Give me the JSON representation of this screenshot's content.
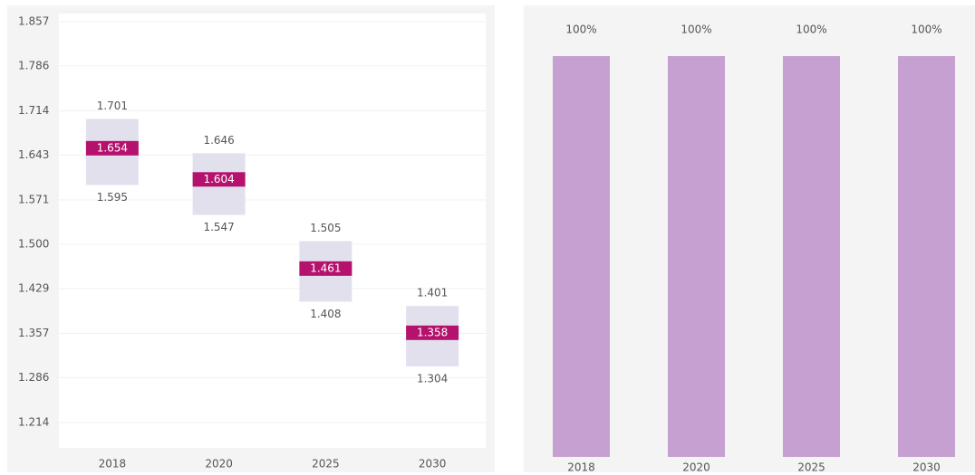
{
  "chart_data": [
    {
      "type": "range",
      "categories": [
        "2018",
        "2020",
        "2025",
        "2030"
      ],
      "high": [
        1.701,
        1.646,
        1.505,
        1.401
      ],
      "values": [
        1.654,
        1.604,
        1.461,
        1.358
      ],
      "low": [
        1.595,
        1.547,
        1.408,
        1.304
      ],
      "range_color": "#e3e0ee",
      "color": "#b5126e",
      "ylim": [
        1.1734,
        1.87
      ],
      "yticks": [
        1.214,
        1.286,
        1.357,
        1.429,
        {
          "value": 1.5,
          "label": "1.500"
        },
        1.571,
        1.643,
        1.714,
        1.786,
        1.857
      ],
      "grid": true
    },
    {
      "type": "bar",
      "categories": [
        "2018",
        "2020",
        "2025",
        "2030"
      ],
      "values": [
        100,
        100,
        100,
        100
      ],
      "value_labels": [
        "100%",
        "100%",
        "100%",
        "100%"
      ],
      "color": "#c5a0d0",
      "ylim": [
        0,
        100
      ]
    }
  ]
}
